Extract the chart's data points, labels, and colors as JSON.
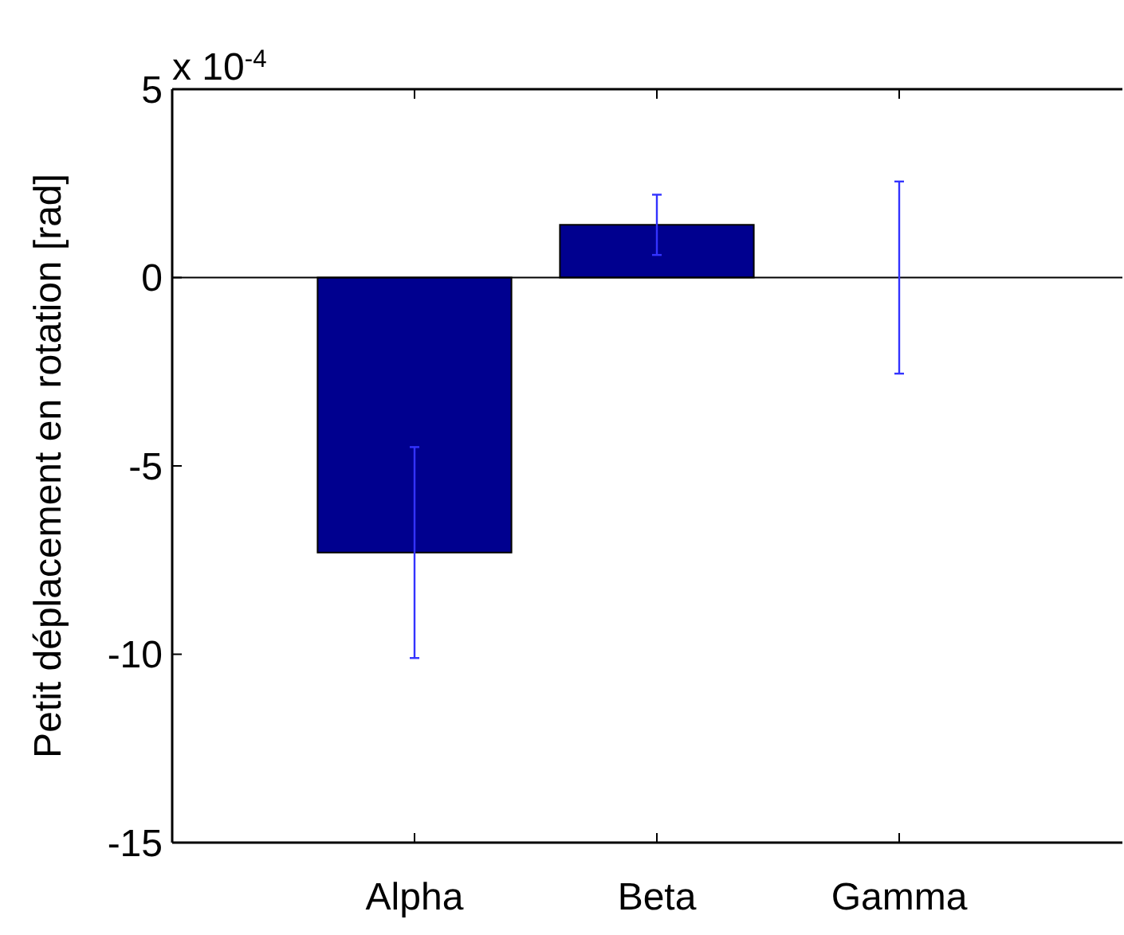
{
  "chart_data": {
    "type": "bar",
    "ylabel": "Petit déplacement en rotation [rad]",
    "annotations": [
      "x 10$^{-4}$"
    ],
    "categories": [
      "Alpha",
      "Beta",
      "Gamma"
    ],
    "values": [
      -7.3,
      1.4,
      0
    ],
    "errors": [
      2.8,
      0.8,
      2.55
    ],
    "color": "#00008f",
    "ylim": [
      -15,
      5
    ],
    "yticks": [
      -15,
      -10,
      -5,
      0,
      5
    ],
    "ref_lines": [
      {
        "axis": "y",
        "value": 0,
        "color": "#000000"
      }
    ]
  }
}
